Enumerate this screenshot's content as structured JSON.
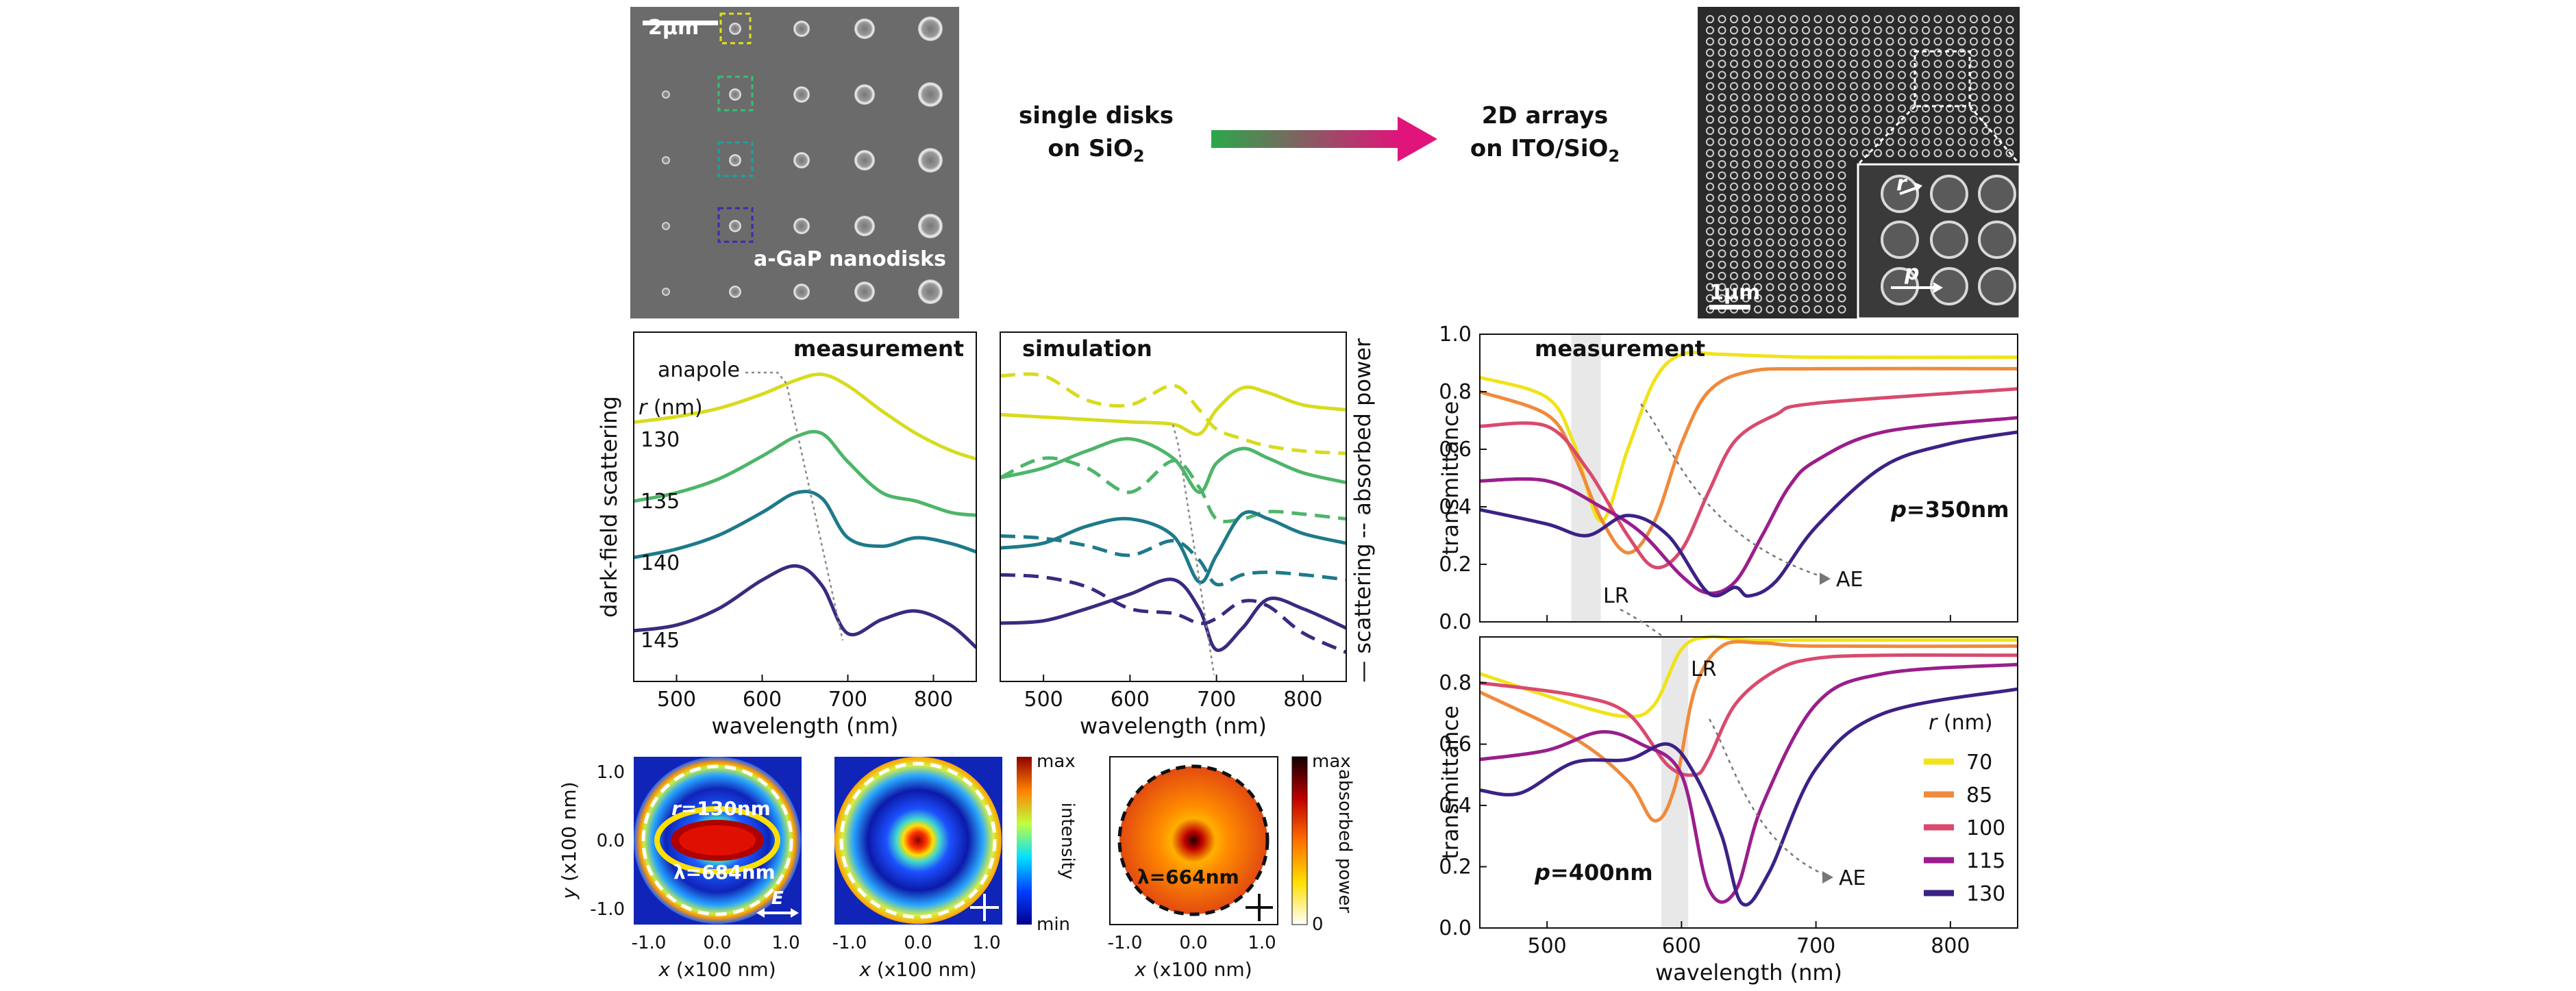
{
  "sem_single": {
    "scalebar": "2μm",
    "label": "a-GaP nanodisks"
  },
  "arrow_text": {
    "left_line1": "single disks",
    "left_line2_main": "on SiO",
    "left_line2_sub": "2",
    "right_line1": "2D arrays",
    "right_line2_main": "on ITO/SiO",
    "right_line2_sub": "2"
  },
  "sem_array": {
    "scalebar": "1μm",
    "label_r": "r",
    "label_p": "p"
  },
  "colors": {
    "r130": "#d8db1e",
    "r135": "#4db56a",
    "r140": "#1d7a8a",
    "r145": "#3a2a80",
    "t70": "#f1e21b",
    "t85": "#f08a3c",
    "t100": "#d94a6e",
    "t115": "#9a1e8c",
    "t130": "#3c2186"
  },
  "chart_data": [
    {
      "type": "line",
      "panel": "dark-field measurement",
      "title": "measurement",
      "xlabel": "wavelength (nm)",
      "ylabel": "dark-field scattering",
      "xlim": [
        450,
        850
      ],
      "xticks": [
        500,
        600,
        700,
        800
      ],
      "legend_title": "r (nm)",
      "annotation": "anapole",
      "series": [
        {
          "name": "130",
          "x": [
            450,
            500,
            550,
            600,
            640,
            670,
            700,
            740,
            780,
            820,
            850
          ],
          "y": [
            4.6,
            4.7,
            4.85,
            5.1,
            5.35,
            5.45,
            5.25,
            4.8,
            4.4,
            4.1,
            3.95
          ]
        },
        {
          "name": "135",
          "x": [
            450,
            500,
            550,
            600,
            640,
            670,
            700,
            740,
            780,
            820,
            850
          ],
          "y": [
            3.2,
            3.35,
            3.6,
            4.0,
            4.35,
            4.4,
            3.9,
            3.35,
            3.2,
            3.0,
            2.95
          ]
        },
        {
          "name": "140",
          "x": [
            450,
            500,
            550,
            600,
            640,
            670,
            700,
            740,
            780,
            820,
            850
          ],
          "y": [
            2.2,
            2.35,
            2.6,
            3.0,
            3.35,
            3.25,
            2.55,
            2.4,
            2.55,
            2.45,
            2.3
          ]
        },
        {
          "name": "145",
          "x": [
            450,
            500,
            550,
            600,
            640,
            670,
            700,
            740,
            780,
            820,
            850
          ],
          "y": [
            0.9,
            1.0,
            1.3,
            1.8,
            2.05,
            1.7,
            0.85,
            1.1,
            1.25,
            1.0,
            0.6
          ]
        }
      ]
    },
    {
      "type": "line",
      "panel": "simulation",
      "title": "simulation",
      "xlabel": "wavelength (nm)",
      "ylabel_right_top": "absorbed power",
      "ylabel_right_bottom": "scattering",
      "xlim": [
        450,
        850
      ],
      "xticks": [
        500,
        600,
        700,
        800
      ],
      "series": [
        {
          "name": "130 scattering",
          "style": "solid",
          "x": [
            450,
            500,
            550,
            600,
            650,
            680,
            700,
            730,
            760,
            800,
            850
          ],
          "y": [
            5.5,
            5.45,
            5.4,
            5.35,
            5.3,
            5.1,
            5.6,
            6.05,
            5.95,
            5.7,
            5.6
          ]
        },
        {
          "name": "130 absorbed power",
          "style": "dashed",
          "x": [
            450,
            500,
            550,
            600,
            650,
            680,
            700,
            730,
            760,
            800,
            850
          ],
          "y": [
            6.3,
            6.3,
            5.8,
            5.7,
            6.1,
            5.6,
            5.2,
            5.0,
            4.85,
            4.75,
            4.7
          ]
        },
        {
          "name": "135 scattering",
          "style": "solid",
          "x": [
            450,
            500,
            550,
            600,
            650,
            680,
            700,
            730,
            760,
            800,
            850
          ],
          "y": [
            4.2,
            4.4,
            4.75,
            5.0,
            4.6,
            3.9,
            4.5,
            4.8,
            4.6,
            4.3,
            4.1
          ]
        },
        {
          "name": "135 absorbed power",
          "style": "dashed",
          "x": [
            450,
            500,
            550,
            600,
            650,
            680,
            700,
            730,
            760,
            800,
            850
          ],
          "y": [
            4.2,
            4.6,
            4.4,
            3.9,
            4.55,
            4.0,
            3.35,
            3.35,
            3.5,
            3.45,
            3.35
          ]
        },
        {
          "name": "140 scattering",
          "style": "solid",
          "x": [
            450,
            500,
            550,
            600,
            650,
            680,
            700,
            730,
            760,
            800,
            850
          ],
          "y": [
            2.75,
            2.85,
            3.2,
            3.35,
            3.0,
            2.05,
            2.6,
            3.45,
            3.35,
            3.05,
            2.85
          ]
        },
        {
          "name": "140 absorbed power",
          "style": "dashed",
          "x": [
            450,
            500,
            550,
            600,
            650,
            680,
            700,
            730,
            760,
            800,
            850
          ],
          "y": [
            3.0,
            2.95,
            2.8,
            2.6,
            2.9,
            2.5,
            2.0,
            2.2,
            2.25,
            2.2,
            2.1
          ]
        },
        {
          "name": "145 scattering",
          "style": "solid",
          "x": [
            450,
            500,
            550,
            600,
            650,
            680,
            700,
            730,
            760,
            800,
            850
          ],
          "y": [
            1.2,
            1.25,
            1.5,
            1.8,
            2.1,
            1.5,
            0.65,
            1.1,
            1.7,
            1.5,
            1.1
          ]
        },
        {
          "name": "145 absorbed power",
          "style": "dashed",
          "x": [
            450,
            500,
            550,
            600,
            650,
            680,
            700,
            730,
            760,
            800,
            850
          ],
          "y": [
            2.2,
            2.15,
            1.95,
            1.5,
            1.4,
            1.2,
            1.3,
            1.65,
            1.55,
            1.0,
            0.6
          ]
        }
      ]
    },
    {
      "type": "line",
      "panel": "transmittance p=350nm",
      "title": "measurement",
      "annotation_p": "p=350nm",
      "annotation_lr": "LR",
      "annotation_ae": "AE",
      "xlabel": "",
      "ylabel": "transmittance",
      "xlim": [
        450,
        850
      ],
      "ylim": [
        0,
        1.0
      ],
      "yticks": [
        0.0,
        0.2,
        0.4,
        0.6,
        0.8,
        1.0
      ],
      "series": [
        {
          "name": "70",
          "x": [
            450,
            500,
            520,
            540,
            560,
            580,
            600,
            630,
            700,
            850
          ],
          "y": [
            0.85,
            0.78,
            0.62,
            0.35,
            0.6,
            0.84,
            0.93,
            0.93,
            0.92,
            0.92
          ]
        },
        {
          "name": "85",
          "x": [
            450,
            500,
            520,
            540,
            560,
            580,
            600,
            620,
            650,
            700,
            850
          ],
          "y": [
            0.8,
            0.72,
            0.58,
            0.36,
            0.24,
            0.35,
            0.62,
            0.8,
            0.87,
            0.88,
            0.88
          ]
        },
        {
          "name": "100",
          "x": [
            450,
            500,
            530,
            560,
            580,
            600,
            620,
            640,
            670,
            700,
            850
          ],
          "y": [
            0.68,
            0.68,
            0.53,
            0.3,
            0.19,
            0.25,
            0.45,
            0.63,
            0.72,
            0.76,
            0.81
          ]
        },
        {
          "name": "115",
          "x": [
            450,
            500,
            540,
            570,
            600,
            620,
            640,
            660,
            680,
            700,
            750,
            850
          ],
          "y": [
            0.49,
            0.49,
            0.4,
            0.31,
            0.16,
            0.1,
            0.14,
            0.3,
            0.47,
            0.56,
            0.66,
            0.71
          ]
        },
        {
          "name": "130",
          "x": [
            450,
            500,
            530,
            560,
            590,
            620,
            640,
            650,
            670,
            700,
            750,
            800,
            850
          ],
          "y": [
            0.39,
            0.34,
            0.3,
            0.37,
            0.3,
            0.1,
            0.12,
            0.09,
            0.14,
            0.33,
            0.54,
            0.62,
            0.66
          ]
        }
      ]
    },
    {
      "type": "line",
      "panel": "transmittance p=400nm",
      "annotation_p": "p=400nm",
      "annotation_lr": "LR",
      "annotation_ae": "AE",
      "xlabel": "wavelength (nm)",
      "ylabel": "transmittance",
      "xlim": [
        450,
        850
      ],
      "ylim": [
        0,
        0.95
      ],
      "xticks": [
        500,
        600,
        700,
        800
      ],
      "yticks": [
        0.0,
        0.2,
        0.4,
        0.6,
        0.8
      ],
      "legend_title": "r (nm)",
      "series": [
        {
          "name": "70",
          "x": [
            450,
            520,
            560,
            580,
            600,
            620,
            650,
            700,
            850
          ],
          "y": [
            0.83,
            0.73,
            0.69,
            0.73,
            0.91,
            0.95,
            0.94,
            0.94,
            0.94
          ]
        },
        {
          "name": "85",
          "x": [
            450,
            520,
            560,
            580,
            595,
            610,
            630,
            660,
            700,
            850
          ],
          "y": [
            0.77,
            0.62,
            0.48,
            0.35,
            0.46,
            0.78,
            0.92,
            0.93,
            0.92,
            0.92
          ]
        },
        {
          "name": "100",
          "x": [
            450,
            520,
            560,
            590,
            610,
            620,
            640,
            670,
            700,
            750,
            850
          ],
          "y": [
            0.8,
            0.76,
            0.7,
            0.53,
            0.5,
            0.55,
            0.73,
            0.84,
            0.88,
            0.89,
            0.89
          ]
        },
        {
          "name": "115",
          "x": [
            450,
            500,
            540,
            570,
            600,
            620,
            640,
            660,
            700,
            750,
            850
          ],
          "y": [
            0.55,
            0.58,
            0.64,
            0.6,
            0.5,
            0.13,
            0.12,
            0.4,
            0.73,
            0.83,
            0.86
          ]
        },
        {
          "name": "130",
          "x": [
            450,
            480,
            520,
            560,
            590,
            610,
            630,
            645,
            665,
            700,
            750,
            850
          ],
          "y": [
            0.45,
            0.44,
            0.54,
            0.55,
            0.6,
            0.5,
            0.3,
            0.08,
            0.18,
            0.52,
            0.7,
            0.78
          ]
        }
      ]
    },
    {
      "type": "heatmap",
      "panel": "field maps",
      "xlabel": "x (x100 nm)",
      "ylabel": "y (x100 nm)",
      "ticks": [
        "-1.0",
        "0.0",
        "1.0"
      ],
      "annotations": [
        "r=130nm",
        "λ=684nm",
        "E",
        "λ=664nm"
      ],
      "colorbar1": {
        "label": "intensity",
        "max": "max",
        "min": "min"
      },
      "colorbar2": {
        "label": "absorbed power",
        "max": "max",
        "min": "0"
      }
    }
  ]
}
